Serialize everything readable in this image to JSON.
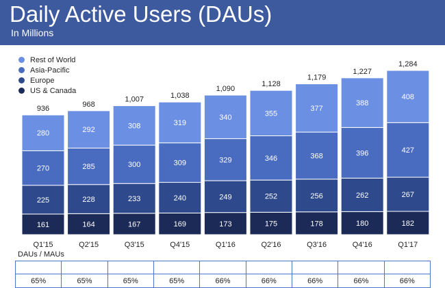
{
  "header": {
    "title": "Daily Active Users (DAUs)",
    "subtitle": "In Millions",
    "background": "#3d5a9e"
  },
  "legend": {
    "items": [
      {
        "label": "Rest of World",
        "color": "#6b8fe3"
      },
      {
        "label": "Asia-Pacific",
        "color": "#4a6cc0"
      },
      {
        "label": "Europe",
        "color": "#2e4a8c"
      },
      {
        "label": "US & Canada",
        "color": "#1b2a57"
      }
    ]
  },
  "chart_data": {
    "type": "bar",
    "stacked": true,
    "categories": [
      "Q1'15",
      "Q2'15",
      "Q3'15",
      "Q4'15",
      "Q1'16",
      "Q2'16",
      "Q3'16",
      "Q4'16",
      "Q1'17"
    ],
    "series": [
      {
        "name": "US & Canada",
        "color": "#1b2a57",
        "values": [
          161,
          164,
          167,
          169,
          173,
          175,
          178,
          180,
          182
        ]
      },
      {
        "name": "Europe",
        "color": "#2e4a8c",
        "values": [
          225,
          228,
          233,
          240,
          249,
          252,
          256,
          262,
          267
        ]
      },
      {
        "name": "Asia-Pacific",
        "color": "#4a6cc0",
        "values": [
          270,
          285,
          300,
          309,
          329,
          346,
          368,
          396,
          427
        ]
      },
      {
        "name": "Rest of World",
        "color": "#6b8fe3",
        "values": [
          280,
          292,
          308,
          319,
          340,
          355,
          377,
          388,
          408
        ]
      }
    ],
    "totals": [
      "936",
      "968",
      "1,007",
      "1,038",
      "1,090",
      "1,128",
      "1,179",
      "1,227",
      "1,284"
    ],
    "ylim": [
      0,
      1300
    ],
    "grid": false,
    "legend_position": "top-left"
  },
  "ratio": {
    "label": "DAUs / MAUs",
    "values": [
      "65%",
      "65%",
      "65%",
      "65%",
      "66%",
      "66%",
      "66%",
      "66%",
      "66%"
    ],
    "border_color": "#4a73c9"
  }
}
